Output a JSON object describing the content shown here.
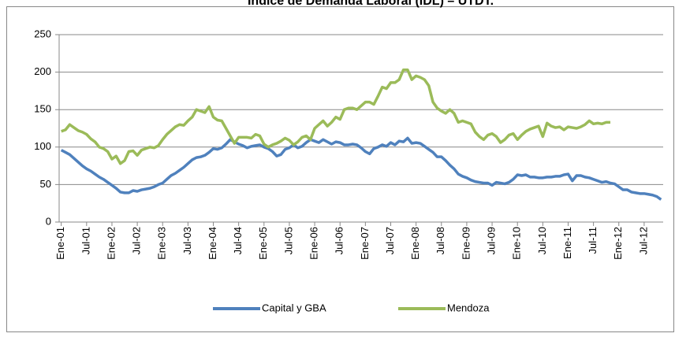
{
  "chart_data": {
    "type": "line",
    "title": "Índice de Demanda Laboral (IDL) – UTDT.",
    "categories": [
      "Ene-01",
      null,
      null,
      null,
      null,
      null,
      "Jul-01",
      null,
      null,
      null,
      null,
      null,
      "Ene-02",
      null,
      null,
      null,
      null,
      null,
      "Jul-02",
      null,
      null,
      null,
      null,
      null,
      "Ene-03",
      null,
      null,
      null,
      null,
      null,
      "Jul-03",
      null,
      null,
      null,
      null,
      null,
      "Ene-04",
      null,
      null,
      null,
      null,
      null,
      "Jul-04",
      null,
      null,
      null,
      null,
      null,
      "Ene-05",
      null,
      null,
      null,
      null,
      null,
      "Jul-05",
      null,
      null,
      null,
      null,
      null,
      "Ene-06",
      null,
      null,
      null,
      null,
      null,
      "Jul-06",
      null,
      null,
      null,
      null,
      null,
      "Ene-07",
      null,
      null,
      null,
      null,
      null,
      "Jul-07",
      null,
      null,
      null,
      null,
      null,
      "Ene-08",
      null,
      null,
      null,
      null,
      null,
      "Jul-08",
      null,
      null,
      null,
      null,
      null,
      "Ene-09",
      null,
      null,
      null,
      null,
      null,
      "Jul-09",
      null,
      null,
      null,
      null,
      null,
      "Ene-10",
      null,
      null,
      null,
      null,
      null,
      "Jul-10",
      null,
      null,
      null,
      null,
      null,
      "Ene-11",
      null,
      null,
      null,
      null,
      null,
      "Jul-11",
      null,
      null,
      null,
      null,
      null,
      "Ene-12",
      null,
      null,
      null,
      null,
      null,
      "Jul-12",
      null,
      null,
      null,
      null
    ],
    "series": [
      {
        "name": "Capital y GBA",
        "color": "#4f81bd",
        "values": [
          96,
          93,
          90,
          85,
          80,
          75,
          71,
          68,
          64,
          60,
          57,
          53,
          49,
          45,
          40,
          39,
          39,
          42,
          41,
          43,
          44,
          45,
          47,
          50,
          52,
          57,
          62,
          65,
          69,
          73,
          78,
          83,
          86,
          87,
          89,
          93,
          98,
          97,
          99,
          104,
          110,
          107,
          104,
          102,
          99,
          101,
          102,
          103,
          100,
          98,
          94,
          88,
          90,
          97,
          99,
          103,
          99,
          101,
          106,
          110,
          108,
          106,
          110,
          107,
          104,
          107,
          106,
          103,
          103,
          104,
          103,
          99,
          94,
          91,
          98,
          100,
          103,
          101,
          106,
          103,
          108,
          107,
          112,
          105,
          106,
          105,
          101,
          97,
          93,
          87,
          87,
          82,
          76,
          71,
          64,
          61,
          59,
          56,
          54,
          53,
          52,
          52,
          49,
          53,
          52,
          51,
          53,
          57,
          63,
          62,
          63,
          60,
          60,
          59,
          59,
          60,
          60,
          61,
          61,
          63,
          64,
          55,
          62,
          62,
          60,
          59,
          57,
          55,
          53,
          54,
          52,
          51,
          47,
          43,
          43,
          40,
          39,
          38,
          38,
          37,
          36,
          34,
          30
        ]
      },
      {
        "name": "Mendoza",
        "color": "#9bbb59",
        "values": [
          121,
          123,
          130,
          126,
          122,
          120,
          117,
          111,
          107,
          100,
          98,
          94,
          84,
          88,
          78,
          82,
          94,
          95,
          89,
          96,
          98,
          100,
          99,
          102,
          110,
          117,
          122,
          127,
          130,
          129,
          135,
          140,
          150,
          148,
          146,
          154,
          140,
          136,
          135,
          125,
          115,
          105,
          113,
          113,
          113,
          112,
          117,
          115,
          104,
          100,
          103,
          105,
          108,
          112,
          109,
          103,
          107,
          113,
          115,
          110,
          125,
          130,
          135,
          128,
          133,
          140,
          137,
          150,
          152,
          152,
          150,
          155,
          160,
          160,
          157,
          168,
          180,
          178,
          186,
          186,
          190,
          203,
          203,
          190,
          195,
          193,
          190,
          182,
          160,
          152,
          148,
          145,
          150,
          145,
          133,
          135,
          133,
          131,
          120,
          114,
          110,
          116,
          118,
          114,
          106,
          110,
          116,
          118,
          110,
          116,
          121,
          124,
          126,
          128,
          114,
          132,
          128,
          126,
          127,
          123,
          127,
          126,
          125,
          127,
          130,
          135,
          131,
          132,
          131,
          133,
          133,
          null,
          null,
          null,
          null,
          null,
          null,
          null,
          null,
          null,
          null,
          null,
          null
        ]
      }
    ],
    "ylim": [
      0,
      250
    ],
    "yticks": [
      0,
      50,
      100,
      150,
      200,
      250
    ],
    "grid": true,
    "legend": "bottom"
  }
}
